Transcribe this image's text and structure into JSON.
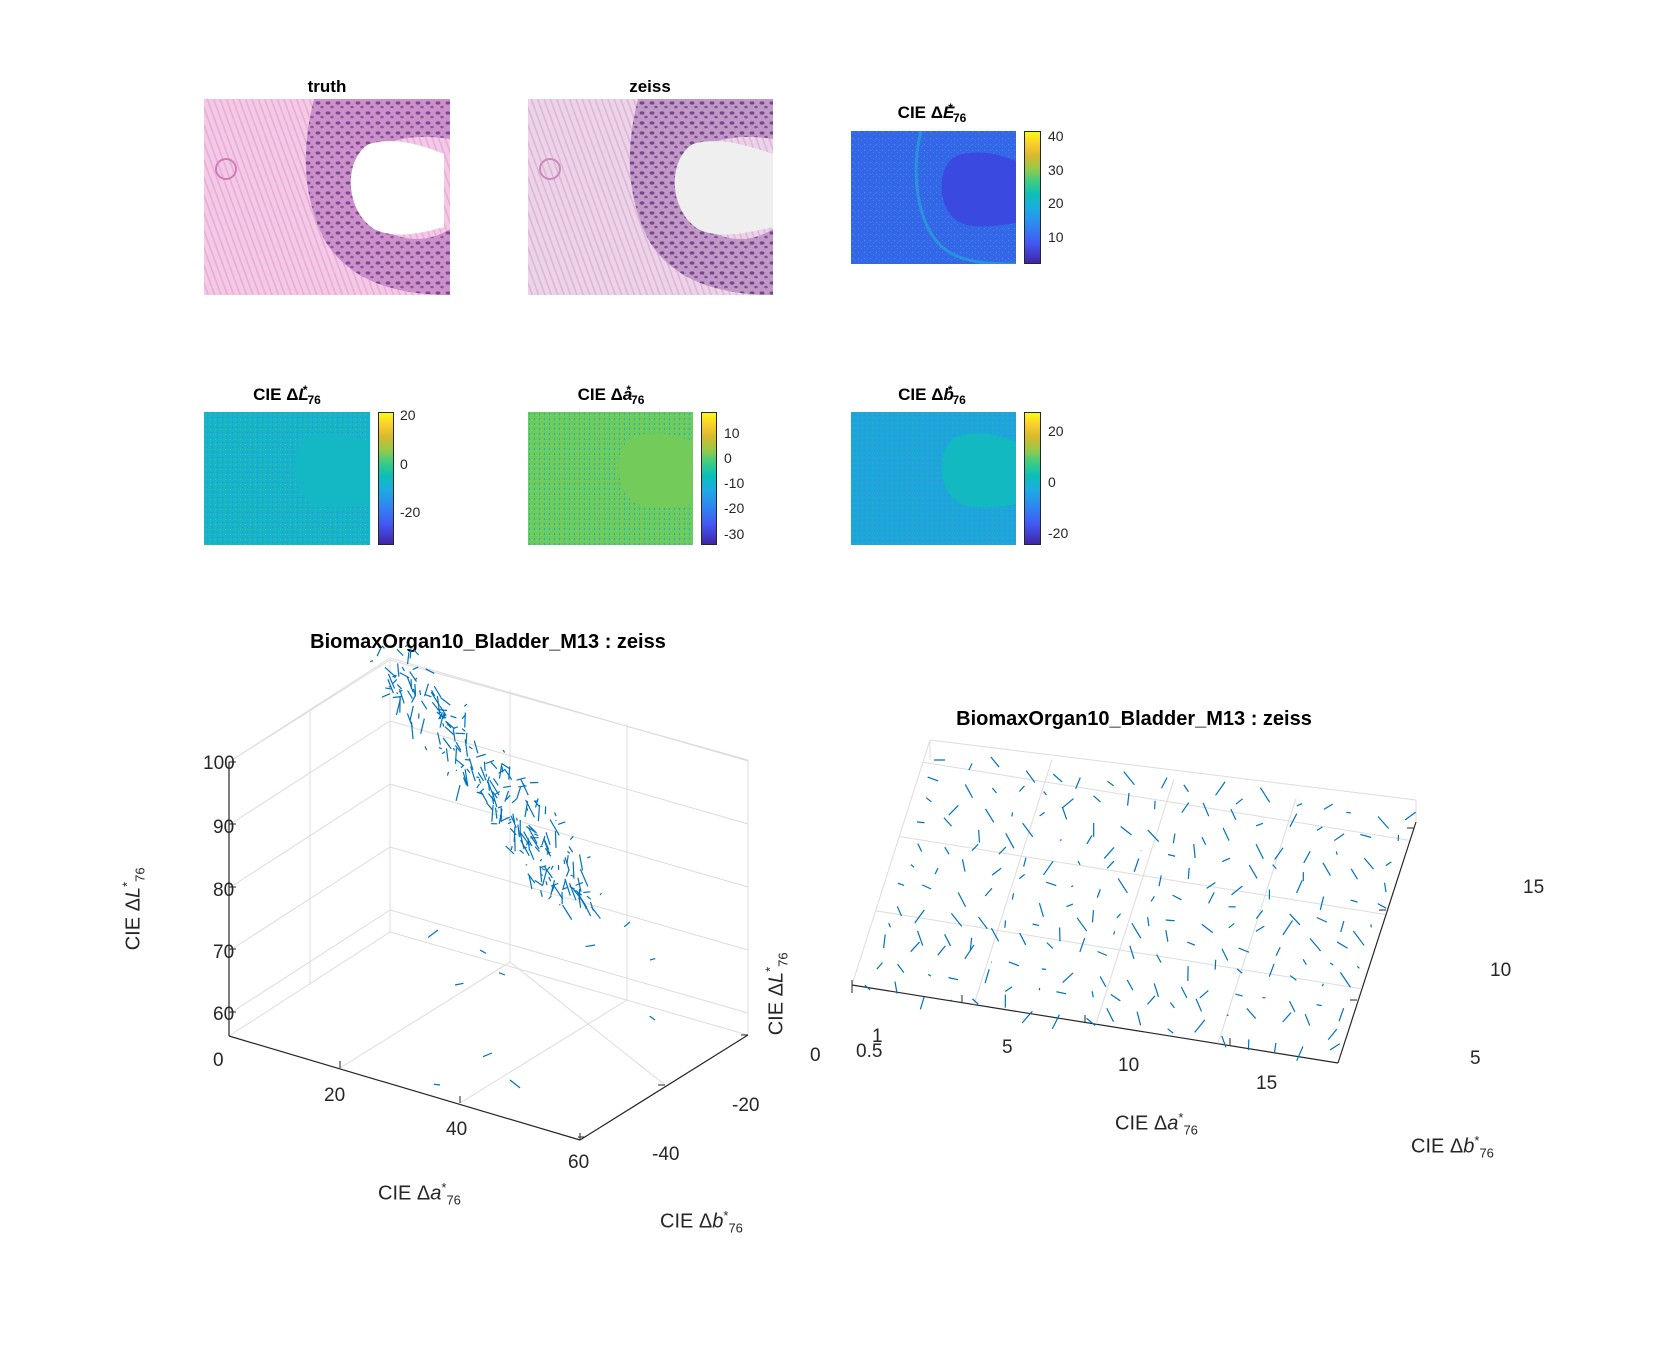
{
  "figure": {
    "panels": [
      {
        "title": "truth",
        "kind": "image"
      },
      {
        "title": "zeiss",
        "kind": "image"
      },
      {
        "title_prefix": "CIE Δ",
        "title_var": "E",
        "title_sup": "*",
        "title_sub": "76",
        "kind": "colorbar-map",
        "ticks": [
          "40",
          "30",
          "20",
          "10"
        ]
      },
      {
        "title_prefix": "CIE Δ",
        "title_var": "L",
        "title_sup": "*",
        "title_sub": "76",
        "kind": "colorbar-map",
        "ticks": [
          "20",
          "0",
          "-20"
        ]
      },
      {
        "title_prefix": "CIE Δ",
        "title_var": "a",
        "title_sup": "*",
        "title_sub": "76",
        "kind": "colorbar-map",
        "ticks": [
          "10",
          "0",
          "-10",
          "-20",
          "-30"
        ]
      },
      {
        "title_prefix": "CIE Δ",
        "title_var": "b",
        "title_sup": "*",
        "title_sub": "76",
        "kind": "colorbar-map",
        "ticks": [
          "20",
          "0",
          "-20"
        ]
      }
    ]
  },
  "chart_data": [
    {
      "type": "quiver3d",
      "title": "BiomaxOrgan10_Bladder_M13 : zeiss",
      "xlabel": "CIE Δa*76",
      "ylabel": "CIE Δb*76",
      "zlabel": "CIE ΔL*76",
      "xlabel_parts": {
        "prefix": "CIE Δ",
        "var": "a",
        "sup": "*",
        "sub": "76"
      },
      "ylabel_parts": {
        "prefix": "CIE Δ",
        "var": "b",
        "sup": "*",
        "sub": "76"
      },
      "zlabel_parts": {
        "prefix": "CIE Δ",
        "var": "L",
        "sup": "*",
        "sub": "76"
      },
      "x_ticks": [
        "0",
        "20",
        "40",
        "60"
      ],
      "y_ticks": [
        "0",
        "-20",
        "-40"
      ],
      "z_ticks": [
        "100",
        "90",
        "80",
        "70",
        "60"
      ],
      "color": "#0072bd"
    },
    {
      "type": "quiver3d",
      "title": "BiomaxOrgan10_Bladder_M13 : zeiss",
      "xlabel": "CIE Δa*76",
      "ylabel": "CIE Δb*76",
      "zlabel": "",
      "xlabel_parts": {
        "prefix": "CIE Δ",
        "var": "a",
        "sup": "*",
        "sub": "76"
      },
      "ylabel_parts": {
        "prefix": "CIE Δ",
        "var": "b",
        "sup": "*",
        "sub": "76"
      },
      "x_ticks": [
        "5",
        "10",
        "15"
      ],
      "y_ticks": [
        "5",
        "10",
        "15"
      ],
      "z_ticks": [
        "1",
        "0.5"
      ],
      "color": "#0072bd"
    }
  ]
}
